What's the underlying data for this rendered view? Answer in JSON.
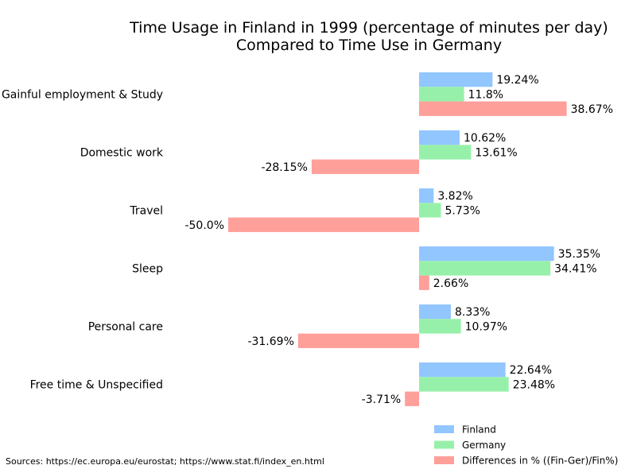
{
  "chart_data": {
    "type": "bar",
    "orientation": "horizontal",
    "title": [
      "Time Usage in Finland in 1999 (percentage of minutes per day)",
      "Compared to Time Use in Germany"
    ],
    "categories": [
      "Gainful employment & Study",
      "Domestic work",
      "Travel",
      "Sleep",
      "Personal care",
      "Free time & Unspecified"
    ],
    "series": [
      {
        "name": "Finland",
        "color": "#92c6ff",
        "values": [
          19.24,
          10.62,
          3.82,
          35.35,
          8.33,
          22.64
        ],
        "labels": [
          "19.24%",
          "10.62%",
          "3.82%",
          "35.35%",
          "8.33%",
          "22.64%"
        ]
      },
      {
        "name": "Germany",
        "color": "#97f0aa",
        "values": [
          11.8,
          13.61,
          5.73,
          34.41,
          10.97,
          23.48
        ],
        "labels": [
          "11.8%",
          "13.61%",
          "5.73%",
          "34.41%",
          "10.97%",
          "23.48%"
        ]
      },
      {
        "name": "Differences in % ((Fin-Ger)/Fin%)",
        "color": "#ff9f9a",
        "values": [
          38.67,
          -28.15,
          -50.0,
          2.66,
          -31.69,
          -3.71
        ],
        "labels": [
          "38.67%",
          "-28.15%",
          "-50.0%",
          "2.66%",
          "-31.69%",
          "-3.71%"
        ]
      }
    ],
    "grid": false,
    "legend_position": "bottom-right",
    "source": "Sources: https://ec.europa.eu/eurostat; https://www.stat.fi/index_en.html"
  }
}
